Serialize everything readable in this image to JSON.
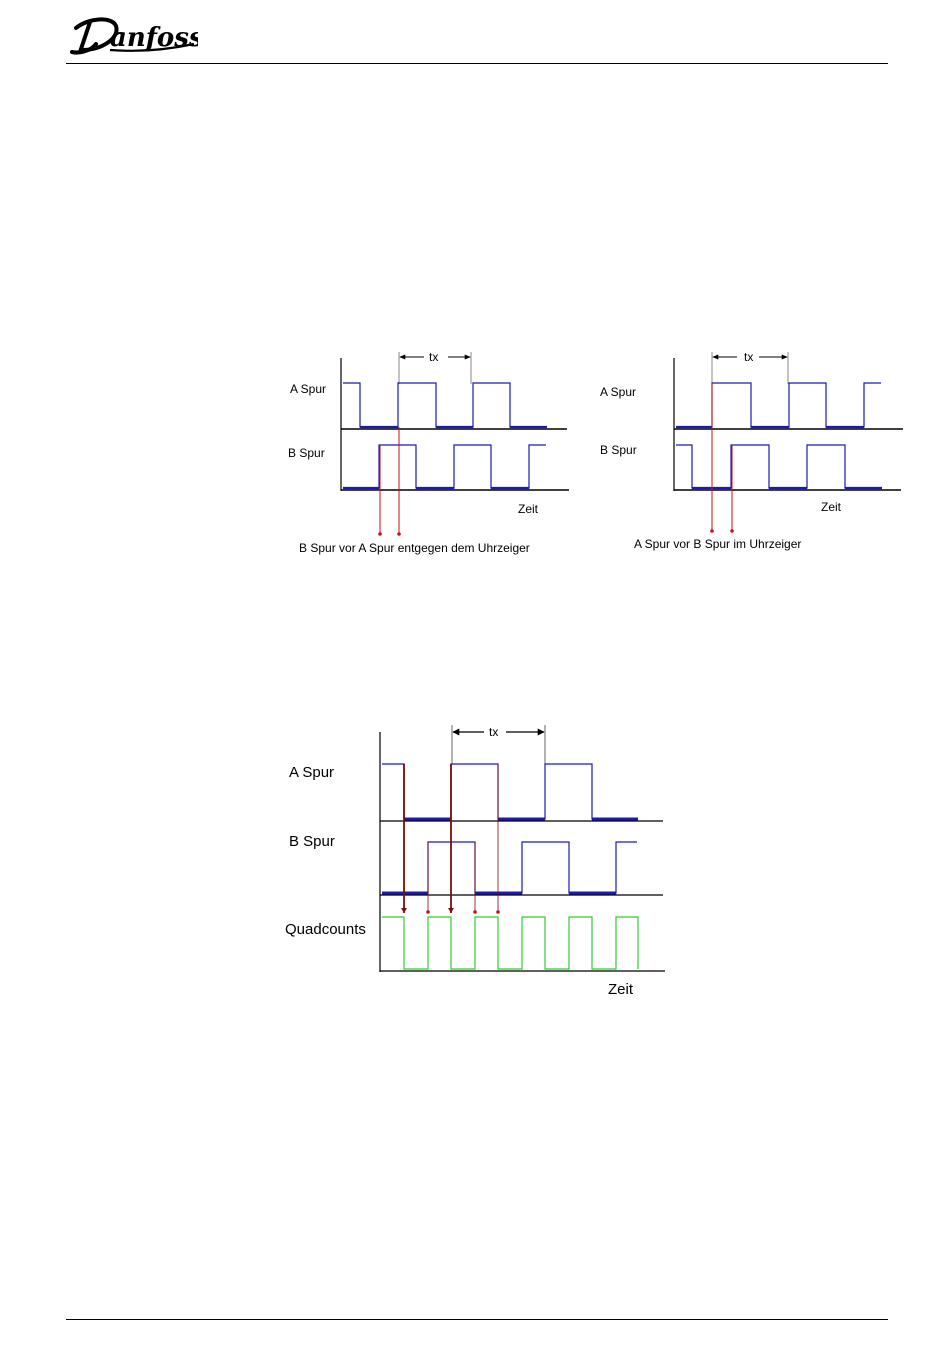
{
  "header": {
    "brand": "Danfoss"
  },
  "colors": {
    "a_track": "#1b1bb0",
    "b_track": "#1b1bb0",
    "quadcounts": "#33cc33",
    "marker": "#cc1111",
    "marker_dark": "#7a0d0d"
  },
  "diagram_left": {
    "a_label": "A Spur",
    "b_label": "B Spur",
    "period_label": "tx",
    "time_label": "Zeit",
    "caption": "B Spur vor A Spur entgegen dem Uhrzeiger"
  },
  "diagram_right": {
    "a_label": "A Spur",
    "b_label": "B Spur",
    "period_label": "tx",
    "time_label": "Zeit",
    "caption": "A Spur vor B Spur im Uhrzeiger"
  },
  "diagram_bottom": {
    "a_label": "A Spur",
    "b_label": "B Spur",
    "q_label": "Quadcounts",
    "period_label": "tx",
    "time_label": "Zeit"
  }
}
